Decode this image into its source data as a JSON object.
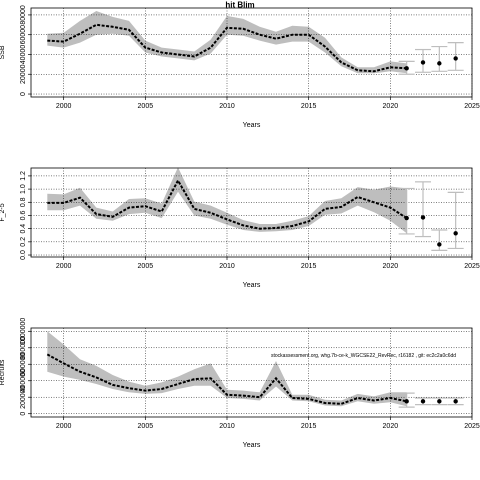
{
  "figure": {
    "title": "hit Blim",
    "annotation": "stockassessment.org, whg.7b-ce-k_WGCSE22_RevRec, r16182 , git: ec2c2a0c6dd"
  },
  "colors": {
    "band": "#bebebe",
    "line": "#000000",
    "forecast_bar": "#bebebe",
    "grid": "#000000"
  },
  "chart_data": [
    {
      "type": "line",
      "title": "hit Blim",
      "xlabel": "Years",
      "ylabel": "SSB",
      "xlim": [
        1998,
        2025
      ],
      "ylim": [
        -3000,
        87000
      ],
      "x_ticks": [
        2000,
        2005,
        2010,
        2015,
        2020,
        2025
      ],
      "y_ticks": [
        0,
        20000,
        40000,
        60000,
        80000
      ],
      "grid": true,
      "x": [
        1999,
        2000,
        2001,
        2002,
        2003,
        2004,
        2005,
        2006,
        2007,
        2008,
        2009,
        2010,
        2011,
        2012,
        2013,
        2014,
        2015,
        2016,
        2017,
        2018,
        2019,
        2020,
        2021
      ],
      "estimate": [
        54000,
        53000,
        61000,
        70000,
        68000,
        65000,
        47000,
        42000,
        40000,
        38000,
        47000,
        67000,
        66000,
        60000,
        56000,
        60000,
        60000,
        48000,
        32000,
        24000,
        23000,
        27000,
        26000
      ],
      "lower": [
        49000,
        47000,
        52000,
        60000,
        61000,
        59000,
        42000,
        38000,
        36000,
        34000,
        41000,
        60000,
        59000,
        54000,
        50000,
        53000,
        53000,
        42000,
        28000,
        21000,
        21000,
        23000,
        21000
      ],
      "upper": [
        61000,
        62000,
        74000,
        84000,
        78000,
        74000,
        54000,
        47000,
        45000,
        43000,
        55000,
        79000,
        76000,
        68000,
        63000,
        69000,
        68000,
        57000,
        37000,
        27000,
        27000,
        33000,
        31000
      ],
      "forecast": {
        "x": [
          2021,
          2022,
          2023,
          2024
        ],
        "estimate": [
          26000,
          32000,
          31000,
          36000
        ],
        "lower": [
          20000,
          22000,
          23000,
          24000
        ],
        "upper": [
          33000,
          45000,
          48000,
          52000
        ]
      }
    },
    {
      "type": "line",
      "xlabel": "Years",
      "ylabel": "F_2-5",
      "xlim": [
        1998,
        2025
      ],
      "ylim": [
        -0.03,
        1.32
      ],
      "x_ticks": [
        2000,
        2005,
        2010,
        2015,
        2020,
        2025
      ],
      "y_ticks": [
        0.0,
        0.2,
        0.4,
        0.6,
        0.8,
        1.0,
        1.2
      ],
      "y_tick_labels": [
        "0.0",
        "0.2",
        "0.4",
        "0.6",
        "0.8",
        "1.0",
        "1.2"
      ],
      "grid": true,
      "x": [
        1999,
        2000,
        2001,
        2002,
        2003,
        2004,
        2005,
        2006,
        2007,
        2008,
        2009,
        2010,
        2011,
        2012,
        2013,
        2014,
        2015,
        2016,
        2017,
        2018,
        2019,
        2020,
        2021
      ],
      "estimate": [
        0.79,
        0.79,
        0.87,
        0.62,
        0.58,
        0.72,
        0.74,
        0.66,
        1.13,
        0.7,
        0.64,
        0.54,
        0.45,
        0.4,
        0.41,
        0.44,
        0.51,
        0.7,
        0.73,
        0.88,
        0.8,
        0.72,
        0.56
      ],
      "lower": [
        0.68,
        0.68,
        0.75,
        0.55,
        0.52,
        0.62,
        0.64,
        0.56,
        0.96,
        0.6,
        0.55,
        0.46,
        0.38,
        0.35,
        0.36,
        0.38,
        0.44,
        0.61,
        0.63,
        0.75,
        0.65,
        0.52,
        0.33
      ],
      "upper": [
        0.93,
        0.92,
        1.02,
        0.72,
        0.66,
        0.85,
        0.86,
        0.78,
        1.33,
        0.81,
        0.75,
        0.64,
        0.53,
        0.47,
        0.47,
        0.52,
        0.59,
        0.82,
        0.86,
        1.03,
        0.99,
        1.04,
        1.01
      ],
      "forecast": {
        "x": [
          2021,
          2022,
          2023,
          2024
        ],
        "estimate": [
          0.56,
          0.57,
          0.16,
          0.33
        ],
        "lower": [
          0.32,
          0.28,
          0.07,
          0.1
        ],
        "upper": [
          1.01,
          1.11,
          0.38,
          0.95
        ]
      }
    },
    {
      "type": "line",
      "xlabel": "Years",
      "ylabel": "Recruits",
      "xlim": [
        1998,
        2025
      ],
      "ylim": [
        -40000,
        1040000
      ],
      "x_ticks": [
        2000,
        2005,
        2010,
        2015,
        2020,
        2025
      ],
      "y_ticks": [
        0,
        200000,
        400000,
        600000,
        800000,
        1000000
      ],
      "y_tick_labels": [
        "0",
        "200000",
        "400000",
        "600000",
        "800000",
        "1000000"
      ],
      "grid": true,
      "x": [
        1999,
        2000,
        2001,
        2002,
        2003,
        2004,
        2005,
        2006,
        2007,
        2008,
        2009,
        2010,
        2011,
        2012,
        2013,
        2014,
        2015,
        2016,
        2017,
        2018,
        2019,
        2020,
        2021
      ],
      "estimate": [
        720000,
        610000,
        510000,
        440000,
        350000,
        310000,
        280000,
        300000,
        360000,
        420000,
        430000,
        230000,
        220000,
        200000,
        430000,
        190000,
        180000,
        130000,
        120000,
        190000,
        160000,
        190000,
        150000
      ],
      "lower": [
        510000,
        450000,
        410000,
        360000,
        300000,
        260000,
        240000,
        250000,
        300000,
        340000,
        340000,
        190000,
        180000,
        160000,
        330000,
        160000,
        150000,
        100000,
        90000,
        150000,
        120000,
        140000,
        90000
      ],
      "upper": [
        1000000,
        840000,
        660000,
        580000,
        470000,
        390000,
        340000,
        380000,
        450000,
        540000,
        610000,
        290000,
        280000,
        260000,
        640000,
        230000,
        230000,
        170000,
        160000,
        240000,
        210000,
        260000,
        260000
      ],
      "forecast": {
        "x": [
          2021,
          2022,
          2023,
          2024
        ],
        "estimate": [
          150000,
          150000,
          150000,
          150000
        ],
        "lower": [
          80000,
          110000,
          110000,
          110000
        ],
        "upper": [
          250000,
          190000,
          190000,
          190000
        ]
      }
    }
  ]
}
